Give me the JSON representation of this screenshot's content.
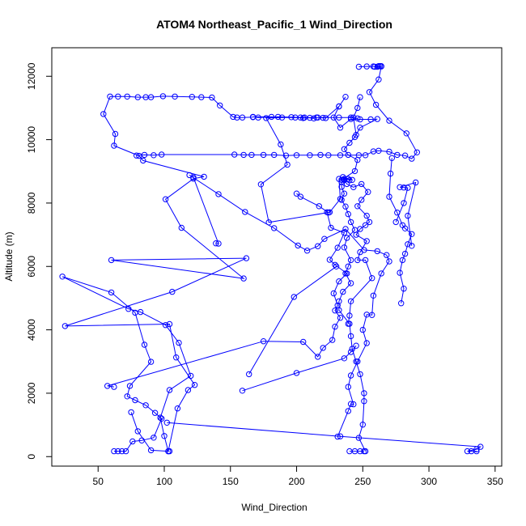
{
  "chart_data": {
    "type": "line",
    "title": "ATOM4 Northeast_Pacific_1 Wind_Direction",
    "xlabel": "Wind_Direction",
    "ylabel": "Altitude (m)",
    "xlim": [
      15,
      355
    ],
    "ylim": [
      -300,
      12900
    ],
    "xticks": [
      50,
      100,
      150,
      200,
      250,
      300,
      350
    ],
    "yticks": [
      0,
      2000,
      4000,
      6000,
      8000,
      10000,
      12000
    ],
    "grid": false,
    "color": "#0000ff",
    "marker": "open-circle",
    "series": [
      {
        "name": "",
        "points": [
          [
            62,
            170
          ],
          [
            65,
            170
          ],
          [
            68,
            170
          ],
          [
            71,
            170
          ],
          [
            76,
            480
          ],
          [
            83,
            510
          ],
          [
            92,
            600
          ],
          [
            98,
            1200
          ],
          [
            93,
            1380
          ],
          [
            86,
            1620
          ],
          [
            78,
            1780
          ],
          [
            72,
            1900
          ],
          [
            74,
            2230
          ],
          [
            90,
            2990
          ],
          [
            85,
            3530
          ],
          [
            78,
            4540
          ],
          [
            60,
            5180
          ],
          [
            23,
            5680
          ],
          [
            73,
            4660
          ],
          [
            82,
            4560
          ],
          [
            101,
            4150
          ],
          [
            111,
            3590
          ],
          [
            120,
            2550
          ],
          [
            104,
            2100
          ],
          [
            97,
            1230
          ],
          [
            100,
            650
          ],
          [
            103,
            170
          ],
          [
            104,
            170
          ]
        ]
      },
      {
        "name": "",
        "points": [
          [
            75,
            1400
          ],
          [
            80,
            800
          ],
          [
            90,
            200
          ],
          [
            103,
            170
          ],
          [
            110,
            1520
          ],
          [
            118,
            2100
          ],
          [
            123,
            2260
          ],
          [
            109,
            3130
          ],
          [
            104,
            4180
          ],
          [
            25,
            4120
          ],
          [
            106,
            5200
          ],
          [
            162,
            6260
          ],
          [
            60,
            6200
          ],
          [
            160,
            5620
          ],
          [
            113,
            7220
          ],
          [
            101,
            8120
          ],
          [
            122,
            8770
          ],
          [
            130,
            8830
          ],
          [
            84,
            9340
          ],
          [
            81,
            9490
          ],
          [
            62,
            9810
          ],
          [
            63,
            10180
          ],
          [
            54,
            10810
          ],
          [
            59,
            11360
          ],
          [
            65,
            11360
          ],
          [
            72,
            11360
          ],
          [
            80,
            11340
          ],
          [
            86,
            11340
          ],
          [
            90,
            11340
          ],
          [
            99,
            11370
          ],
          [
            108,
            11360
          ],
          [
            121,
            11350
          ],
          [
            128,
            11340
          ],
          [
            136,
            11330
          ],
          [
            142,
            11080
          ],
          [
            152,
            10720
          ],
          [
            155,
            10700
          ],
          [
            159,
            10700
          ],
          [
            167,
            10710
          ]
        ]
      },
      {
        "name": "",
        "points": [
          [
            79,
            9500
          ],
          [
            85,
            9520
          ],
          [
            92,
            9510
          ],
          [
            98,
            9530
          ],
          [
            153,
            9530
          ],
          [
            160,
            9520
          ],
          [
            166,
            9520
          ],
          [
            175,
            9520
          ],
          [
            183,
            9520
          ],
          [
            192,
            9500
          ],
          [
            200,
            9510
          ],
          [
            210,
            9510
          ],
          [
            218,
            9520
          ],
          [
            224,
            9510
          ],
          [
            233,
            9510
          ],
          [
            247,
            9510
          ],
          [
            252,
            9510
          ],
          [
            258,
            9630
          ],
          [
            262,
            9650
          ],
          [
            270,
            9620
          ],
          [
            276,
            9520
          ],
          [
            282,
            9500
          ],
          [
            287,
            9400
          ],
          [
            291,
            9600
          ],
          [
            283,
            10200
          ],
          [
            270,
            10600
          ],
          [
            260,
            11100
          ],
          [
            255,
            11500
          ],
          [
            262,
            11900
          ],
          [
            264,
            12310
          ],
          [
            258,
            12310
          ],
          [
            253,
            12310
          ],
          [
            247,
            12300
          ]
        ]
      },
      {
        "name": "",
        "points": [
          [
            237,
            11350
          ],
          [
            232,
            11050
          ],
          [
            228,
            10700
          ],
          [
            233,
            10380
          ],
          [
            241,
            10650
          ],
          [
            248,
            10640
          ],
          [
            256,
            10640
          ],
          [
            261,
            10650
          ],
          [
            248,
            10380
          ],
          [
            244,
            10080
          ],
          [
            240,
            9900
          ],
          [
            236,
            9700
          ],
          [
            239,
            9520
          ],
          [
            246,
            9360
          ],
          [
            244,
            9010
          ],
          [
            234,
            8730
          ],
          [
            236,
            8760
          ],
          [
            239,
            8760
          ],
          [
            234,
            8670
          ],
          [
            234,
            8510
          ],
          [
            236,
            8300
          ],
          [
            234,
            8100
          ],
          [
            237,
            7890
          ],
          [
            239,
            7650
          ],
          [
            241,
            7400
          ],
          [
            244,
            7150
          ],
          [
            238,
            6900
          ],
          [
            236,
            6600
          ],
          [
            241,
            6200
          ],
          [
            239,
            6000
          ],
          [
            237,
            5780
          ],
          [
            241,
            5470
          ],
          [
            235,
            5200
          ],
          [
            232,
            4900
          ],
          [
            232,
            4620
          ],
          [
            240,
            4190
          ],
          [
            241,
            3800
          ],
          [
            242,
            3400
          ],
          [
            245,
            3000
          ],
          [
            248,
            2600
          ],
          [
            251,
            2000
          ],
          [
            251,
            1750
          ],
          [
            250,
            1010
          ],
          [
            247,
            590
          ],
          [
            252,
            170
          ]
        ]
      },
      {
        "name": "",
        "points": [
          [
            232,
            11050
          ],
          [
            222,
            10680
          ],
          [
            220,
            10690
          ],
          [
            216,
            10700
          ],
          [
            203,
            10700
          ],
          [
            196,
            10710
          ],
          [
            186,
            10720
          ],
          [
            171,
            10700
          ],
          [
            167,
            10720
          ],
          [
            181,
            10720
          ],
          [
            199,
            10700
          ],
          [
            205,
            10680
          ],
          [
            215,
            10700
          ],
          [
            232,
            10700
          ],
          [
            241,
            10700
          ],
          [
            246,
            10670
          ]
        ]
      },
      {
        "name": "",
        "points": [
          [
            240,
            8720
          ],
          [
            235,
            8820
          ],
          [
            242,
            8730
          ],
          [
            232,
            8760
          ],
          [
            233,
            8130
          ],
          [
            225,
            7710
          ],
          [
            179,
            7390
          ],
          [
            173,
            8590
          ],
          [
            193,
            9210
          ],
          [
            188,
            9850
          ],
          [
            177,
            10680
          ],
          [
            189,
            10700
          ],
          [
            206,
            10700
          ],
          [
            210,
            10690
          ],
          [
            213,
            10670
          ]
        ]
      },
      {
        "name": "",
        "points": [
          [
            223,
            7710
          ],
          [
            226,
            7220
          ],
          [
            236,
            7060
          ],
          [
            231,
            6590
          ],
          [
            225,
            6210
          ],
          [
            229,
            6050
          ],
          [
            238,
            5780
          ],
          [
            232,
            5530
          ],
          [
            228,
            5150
          ],
          [
            231,
            4770
          ],
          [
            229,
            4610
          ],
          [
            233,
            4380
          ],
          [
            229,
            4100
          ],
          [
            227,
            3680
          ],
          [
            220,
            3430
          ],
          [
            216,
            3150
          ],
          [
            205,
            3620
          ],
          [
            175,
            3640
          ],
          [
            57,
            2230
          ],
          [
            62,
            2200
          ]
        ]
      },
      {
        "name": "",
        "points": [
          [
            236,
            8730
          ],
          [
            238,
            8600
          ],
          [
            243,
            8500
          ],
          [
            249,
            8600
          ],
          [
            254,
            8350
          ],
          [
            249,
            8100
          ],
          [
            246,
            7900
          ],
          [
            253,
            7600
          ],
          [
            255,
            7400
          ],
          [
            252,
            7300
          ],
          [
            248,
            7180
          ],
          [
            245,
            7000
          ],
          [
            253,
            6800
          ],
          [
            248,
            6450
          ],
          [
            246,
            6200
          ],
          [
            252,
            6200
          ],
          [
            257,
            5630
          ],
          [
            241,
            4900
          ],
          [
            240,
            4450
          ],
          [
            239,
            4190
          ]
        ]
      },
      {
        "name": "",
        "points": [
          [
            139,
            6730
          ],
          [
            141,
            6720
          ],
          [
            122,
            8810
          ],
          [
            119,
            8880
          ],
          [
            141,
            8280
          ],
          [
            161,
            7720
          ],
          [
            183,
            7210
          ],
          [
            201,
            6660
          ],
          [
            208,
            6500
          ],
          [
            216,
            6640
          ],
          [
            221,
            6870
          ],
          [
            237,
            7180
          ],
          [
            251,
            6520
          ],
          [
            261,
            6480
          ],
          [
            268,
            6360
          ],
          [
            270,
            6160
          ],
          [
            264,
            5780
          ],
          [
            258,
            5080
          ],
          [
            257,
            4470
          ],
          [
            253,
            4480
          ],
          [
            250,
            4000
          ],
          [
            253,
            3580
          ],
          [
            246,
            3000
          ],
          [
            241,
            2560
          ],
          [
            239,
            2200
          ],
          [
            243,
            1650
          ],
          [
            241,
            1660
          ],
          [
            239,
            1440
          ],
          [
            231,
            630
          ]
        ]
      },
      {
        "name": "",
        "points": [
          [
            224,
            7700
          ],
          [
            217,
            7900
          ],
          [
            203,
            8200
          ],
          [
            200,
            8300
          ]
        ]
      },
      {
        "name": "",
        "points": [
          [
            248,
            11340
          ],
          [
            246,
            11000
          ],
          [
            243,
            10700
          ],
          [
            245,
            10150
          ]
        ]
      },
      {
        "name": "",
        "points": [
          [
            102,
            1070
          ],
          [
            233,
            640
          ],
          [
            339,
            310
          ],
          [
            336,
            230
          ],
          [
            329,
            170
          ],
          [
            332,
            170
          ],
          [
            336,
            170
          ]
        ]
      },
      {
        "name": "",
        "points": [
          [
            159,
            2080
          ],
          [
            200,
            2640
          ],
          [
            236,
            3100
          ],
          [
            241,
            3300
          ],
          [
            245,
            3500
          ]
        ]
      },
      {
        "name": "",
        "points": [
          [
            164,
            2600
          ],
          [
            198,
            5040
          ],
          [
            230,
            6000
          ]
        ]
      },
      {
        "name": "",
        "points": [
          [
            240,
            170
          ],
          [
            244,
            170
          ],
          [
            248,
            170
          ],
          [
            251,
            170
          ]
        ]
      },
      {
        "name": "",
        "points": [
          [
            259,
            12300
          ],
          [
            263,
            12320
          ],
          [
            261,
            12300
          ],
          [
            264,
            12320
          ],
          [
            262,
            12320
          ]
        ]
      },
      {
        "name": "",
        "points": [
          [
            272,
            9420
          ],
          [
            271,
            8930
          ],
          [
            270,
            8200
          ],
          [
            276,
            7700
          ],
          [
            280,
            7300
          ],
          [
            282,
            7200
          ],
          [
            287,
            7020
          ],
          [
            284,
            6700
          ],
          [
            282,
            6400
          ],
          [
            280,
            6200
          ],
          [
            278,
            5800
          ],
          [
            281,
            5300
          ],
          [
            279,
            4840
          ]
        ]
      },
      {
        "name": "",
        "points": [
          [
            275,
            7400
          ],
          [
            281,
            8000
          ],
          [
            284,
            8480
          ],
          [
            281,
            8490
          ],
          [
            278,
            8500
          ],
          [
            290,
            8650
          ],
          [
            284,
            7600
          ],
          [
            287,
            6650
          ]
        ]
      }
    ]
  }
}
